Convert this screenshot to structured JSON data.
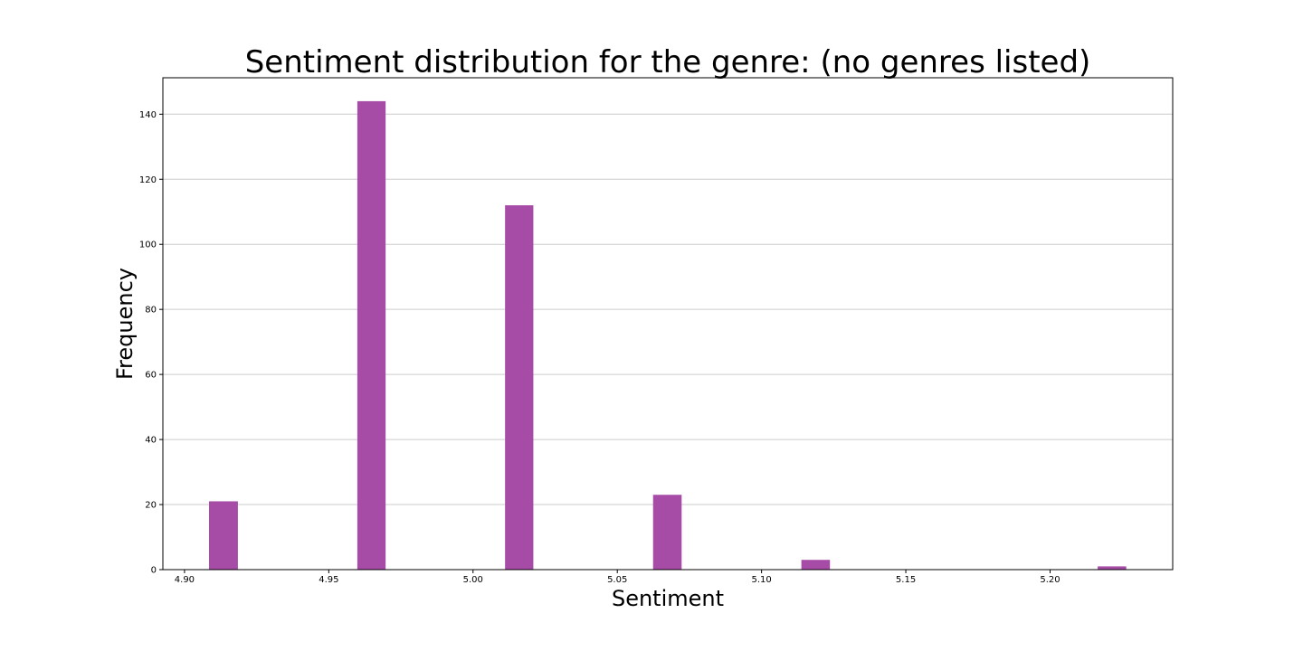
{
  "chart_data": {
    "type": "bar",
    "title": "Sentiment distribution for the genre: (no genres listed)",
    "xlabel": "Sentiment",
    "ylabel": "Frequency",
    "xlim": [
      4.8925,
      5.2425
    ],
    "ylim": [
      0,
      151.2
    ],
    "x_ticks": [
      "4.90",
      "4.95",
      "5.00",
      "5.05",
      "5.10",
      "5.15",
      "5.20"
    ],
    "y_ticks": [
      "0",
      "20",
      "40",
      "60",
      "80",
      "100",
      "120",
      "140"
    ],
    "grid": "horizontal",
    "bar_color": "#a64ca6",
    "bins": [
      {
        "x0": 4.9085,
        "x1": 4.9185,
        "value": 21
      },
      {
        "x0": 4.9599,
        "x1": 4.9697,
        "value": 144
      },
      {
        "x0": 5.0111,
        "x1": 5.0209,
        "value": 112
      },
      {
        "x0": 5.0624,
        "x1": 5.0723,
        "value": 23
      },
      {
        "x0": 5.1138,
        "x1": 5.1237,
        "value": 3
      },
      {
        "x0": 5.2165,
        "x1": 5.2264,
        "value": 1
      }
    ]
  }
}
